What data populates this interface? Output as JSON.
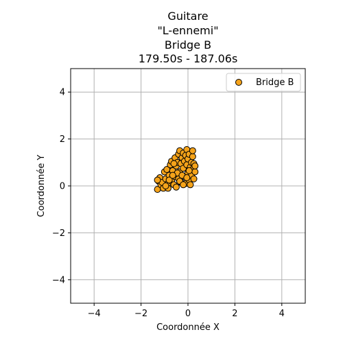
{
  "chart_data": {
    "type": "scatter",
    "title_lines": [
      "Guitare",
      "\"L-ennemi\"",
      "Bridge B",
      "179.50s - 187.06s"
    ],
    "xlabel": "Coordonnée X",
    "ylabel": "Coordonnée Y",
    "xlim": [
      -5,
      5
    ],
    "ylim": [
      -5,
      5
    ],
    "xticks": [
      -4,
      -2,
      0,
      2,
      4
    ],
    "yticks": [
      -4,
      -2,
      0,
      2,
      4
    ],
    "xtick_labels": [
      "−4",
      "−2",
      "0",
      "2",
      "4"
    ],
    "ytick_labels": [
      "−4",
      "−2",
      "0",
      "2",
      "4"
    ],
    "grid": true,
    "legend_position": "top-right",
    "marker_face_color": "#f5a31a",
    "marker_edge_color": "#000000",
    "series": [
      {
        "name": "Bridge B",
        "points": [
          [
            -1.3,
            -0.15
          ],
          [
            -1.25,
            0.2
          ],
          [
            -1.2,
            0.35
          ],
          [
            -1.15,
            0.05
          ],
          [
            -1.1,
            0.15
          ],
          [
            -1.05,
            -0.1
          ],
          [
            -1.0,
            0.6
          ],
          [
            -0.95,
            0.3
          ],
          [
            -0.9,
            0.7
          ],
          [
            -0.85,
            0.1
          ],
          [
            -0.85,
            -0.1
          ],
          [
            -0.8,
            0.45
          ],
          [
            -0.75,
            0.9
          ],
          [
            -0.7,
            0.2
          ],
          [
            -0.7,
            1.05
          ],
          [
            -0.65,
            0.65
          ],
          [
            -0.6,
            0.05
          ],
          [
            -0.55,
            0.4
          ],
          [
            -0.55,
            1.2
          ],
          [
            -0.5,
            0.85
          ],
          [
            -0.5,
            -0.05
          ],
          [
            -0.45,
            1.0
          ],
          [
            -0.4,
            0.3
          ],
          [
            -0.4,
            1.35
          ],
          [
            -0.35,
            0.6
          ],
          [
            -0.35,
            1.5
          ],
          [
            -0.3,
            0.95
          ],
          [
            -0.3,
            0.15
          ],
          [
            -0.25,
            1.2
          ],
          [
            -0.2,
            0.75
          ],
          [
            -0.2,
            1.4
          ],
          [
            -0.15,
            0.4
          ],
          [
            -0.15,
            1.05
          ],
          [
            -0.1,
            1.3
          ],
          [
            -0.1,
            0.1
          ],
          [
            -0.05,
            0.9
          ],
          [
            -0.05,
            1.55
          ],
          [
            0.0,
            0.55
          ],
          [
            0.0,
            1.15
          ],
          [
            0.05,
            0.25
          ],
          [
            0.05,
            1.35
          ],
          [
            0.1,
            0.8
          ],
          [
            0.1,
            0.05
          ],
          [
            0.15,
            1.0
          ],
          [
            0.15,
            0.45
          ],
          [
            0.2,
            1.25
          ],
          [
            0.2,
            0.7
          ],
          [
            0.25,
            0.95
          ],
          [
            0.25,
            0.3
          ],
          [
            0.3,
            0.6
          ],
          [
            0.3,
            0.85
          ],
          [
            0.2,
            1.5
          ],
          [
            -0.6,
            0.95
          ],
          [
            -0.8,
            0.25
          ],
          [
            -0.45,
            0.55
          ],
          [
            -0.25,
            0.45
          ],
          [
            -0.65,
            0.45
          ],
          [
            -0.35,
            0.2
          ],
          [
            -0.05,
            0.35
          ],
          [
            -0.95,
            0.0
          ],
          [
            -1.3,
            0.25
          ],
          [
            -0.2,
            0.05
          ],
          [
            0.05,
            0.65
          ]
        ]
      }
    ]
  }
}
